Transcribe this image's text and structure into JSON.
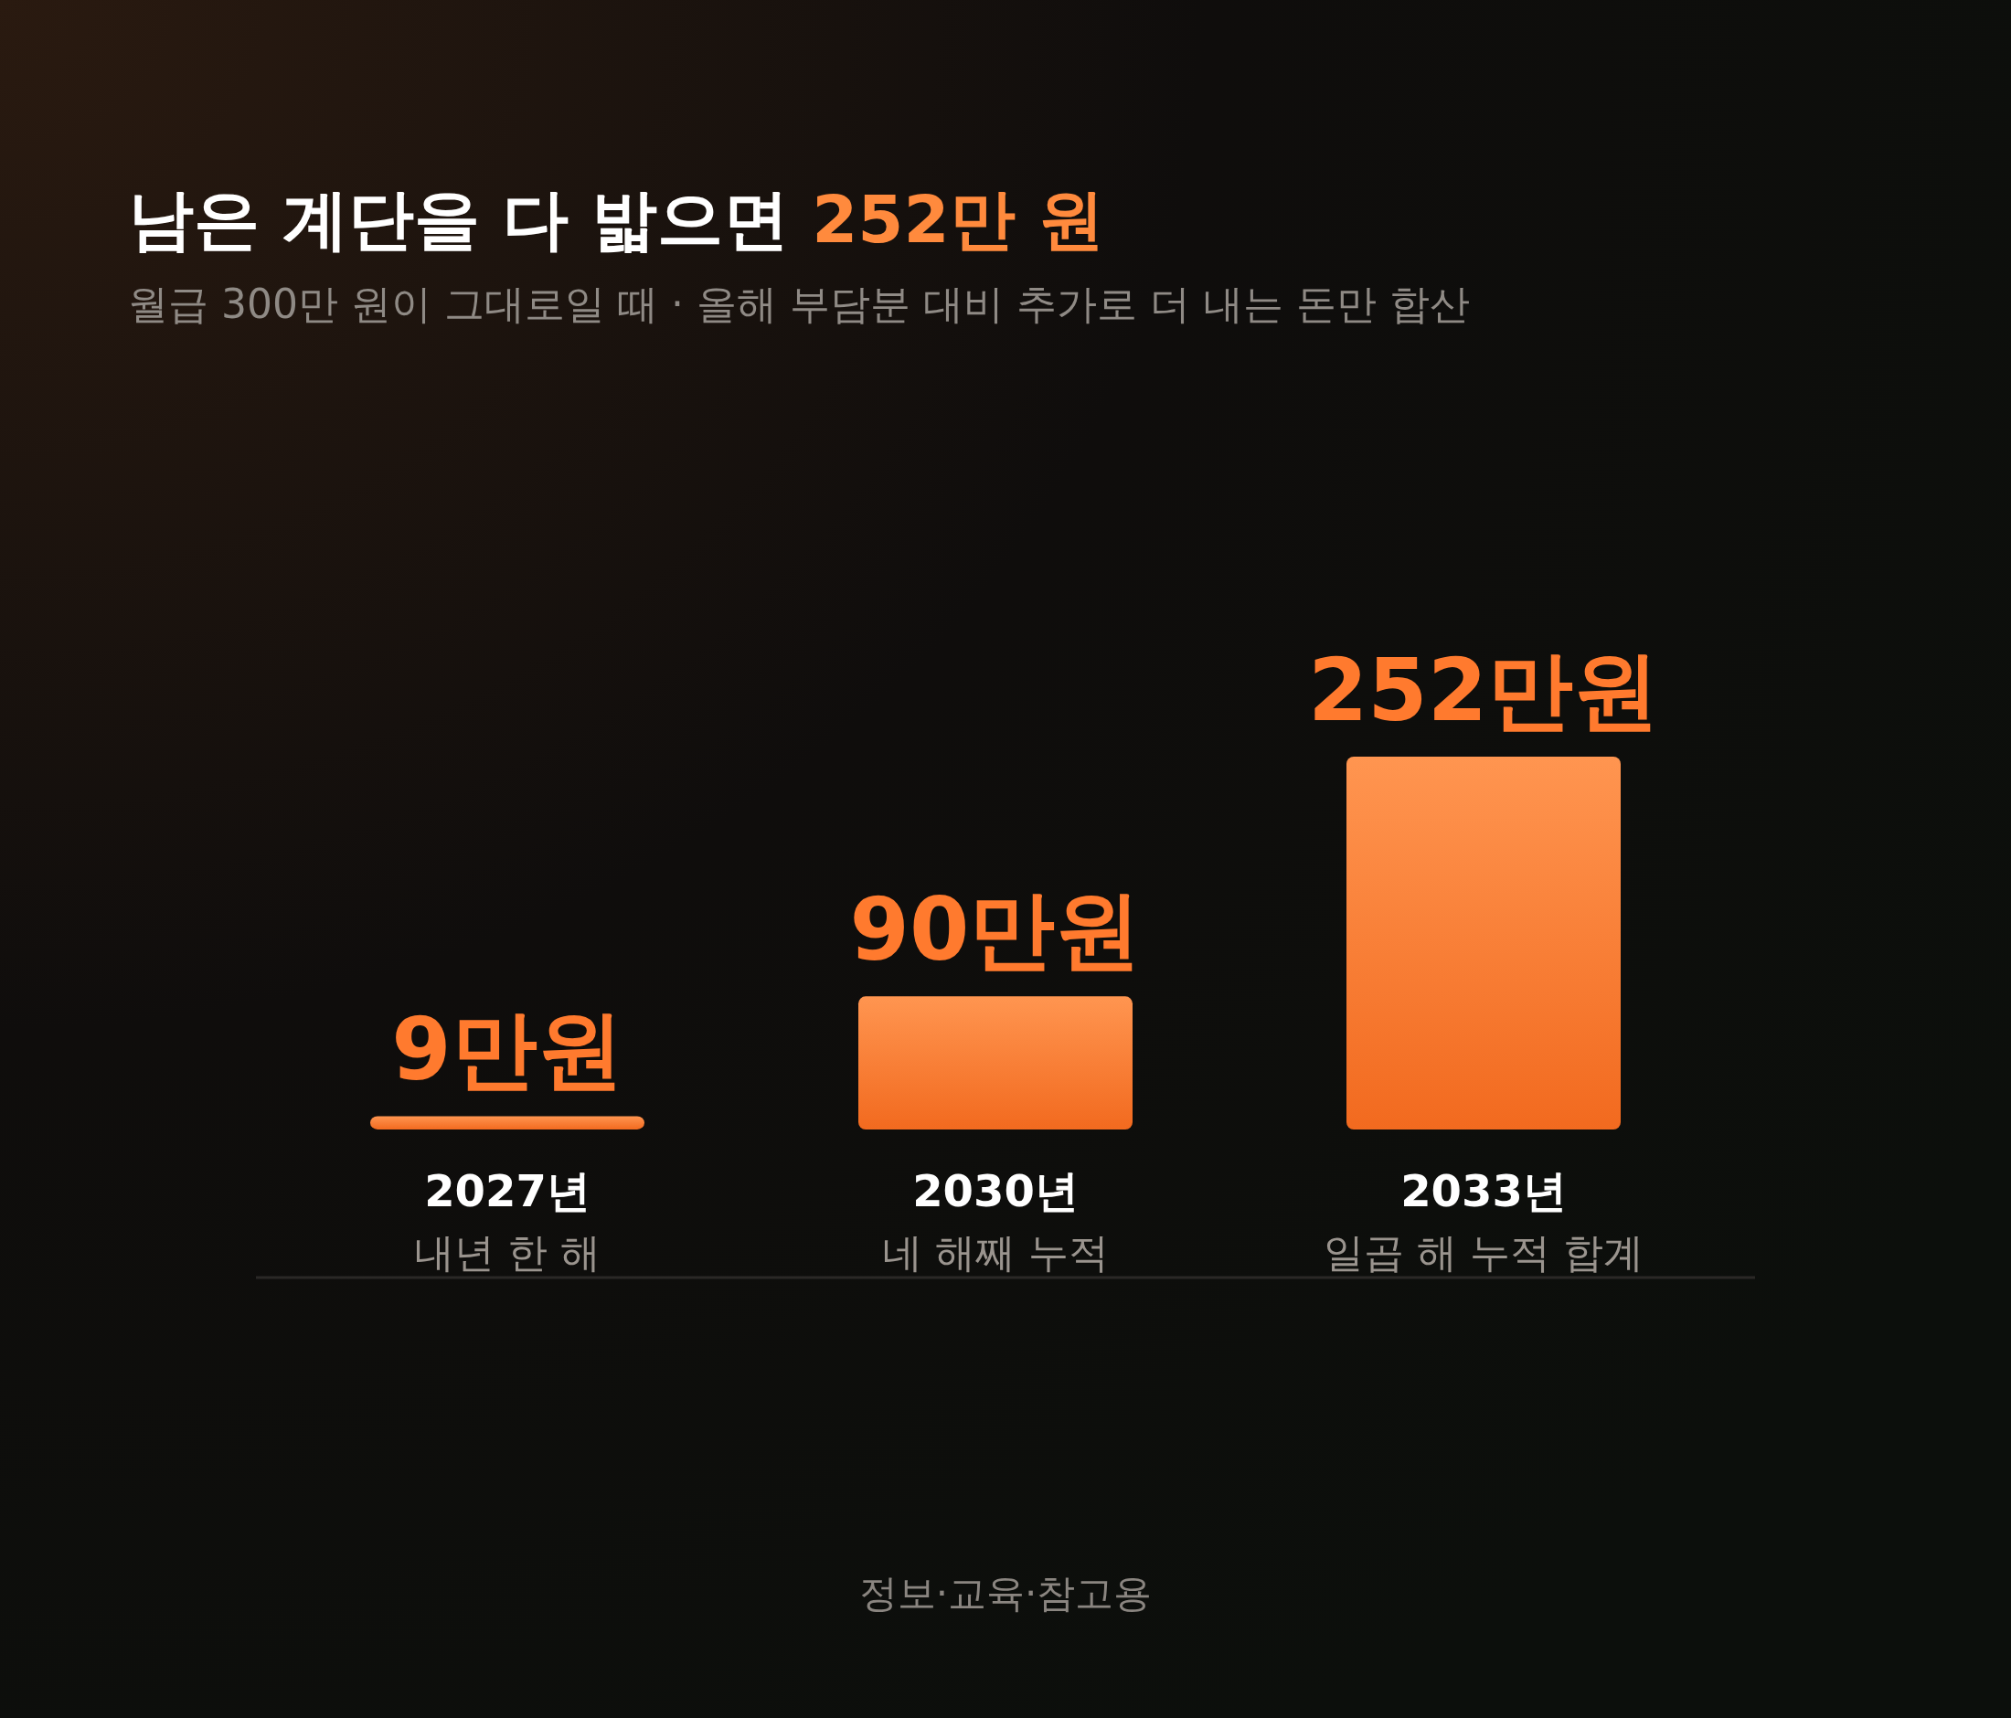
{
  "chart_data": {
    "type": "bar",
    "title": "남은 계단을 다 밟으면 252만 원",
    "subtitle": "월급 300만 원이 그대로일 때 · 올해 부담분 대비 추가로 더 내는 돈만 합산",
    "categories": [
      "2027년\n내년 한 해",
      "2030년\n네 해째 누적",
      "2033년\n일곱 해 누적 합계"
    ],
    "values": [
      9,
      90,
      252
    ],
    "value_labels": [
      "9만원",
      "90만원",
      "252만원"
    ],
    "color": "#f26a1f",
    "annotations": [
      "정보·교육·참고용"
    ]
  }
}
